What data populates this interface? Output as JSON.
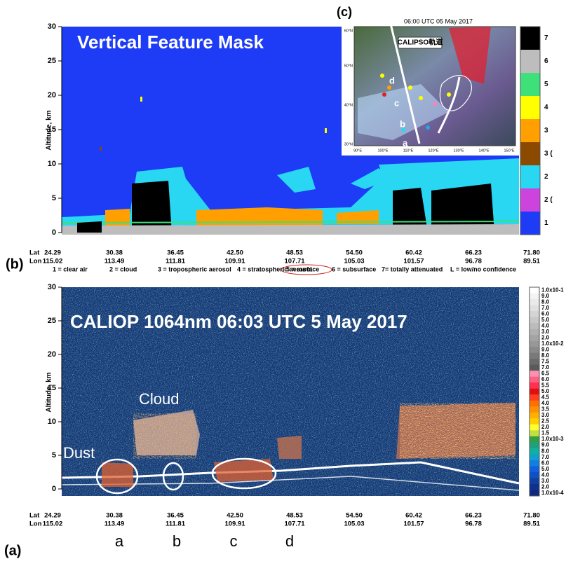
{
  "chart_data": [
    {
      "type": "curtain",
      "panel_label": "(b)",
      "title": "Vertical Feature Mask",
      "ylabel": "Altitude, km",
      "ylim": [
        0,
        30
      ],
      "yticks": [
        0,
        5,
        10,
        15,
        20,
        25,
        30
      ],
      "lat_name": "Lat",
      "lon_name": "Lon",
      "lat_labels": [
        "24.29",
        "30.38",
        "36.45",
        "42.50",
        "48.53",
        "54.50",
        "60.42",
        "66.23",
        "71.80"
      ],
      "lon_labels": [
        "115.02",
        "113.49",
        "111.81",
        "109.91",
        "107.71",
        "105.03",
        "101.57",
        "96.78",
        "89.51"
      ],
      "legend": [
        "1 = clear air",
        "2 = cloud",
        "3 = tropospheric aerosol",
        "4 = stratospheric aerosol",
        "5 = surface",
        "6 = subsurface",
        "7= totally attenuated",
        "L = low/no confidence"
      ],
      "colorbar_labels": [
        "7",
        "6",
        "5",
        "4",
        "3",
        "3 (",
        "2",
        "2 (",
        "1"
      ],
      "colorbar_colors": [
        "#000000",
        "#bdbdbd",
        "#3ee07a",
        "#ffff00",
        "#ffa000",
        "#8b4a00",
        "#29d7f2",
        "#cc44dd",
        "#1e3cf5"
      ]
    },
    {
      "type": "curtain",
      "panel_label": "(a)",
      "title": "CALIOP 1064nm 06:03 UTC 5 May 2017",
      "ylabel": "Altitude, km",
      "ylim": [
        0,
        30
      ],
      "yticks": [
        0,
        5,
        10,
        15,
        20,
        25,
        30
      ],
      "lat_name": "Lat",
      "lon_name": "Lon",
      "lat_labels": [
        "24.29",
        "30.38",
        "36.45",
        "42.50",
        "48.53",
        "54.50",
        "60.42",
        "66.23",
        "71.80"
      ],
      "lon_labels": [
        "115.02",
        "113.49",
        "111.81",
        "109.91",
        "107.71",
        "105.03",
        "101.57",
        "96.78",
        "89.51"
      ],
      "annotations": [
        "Cloud",
        "Dust"
      ],
      "site_labels": [
        "a",
        "b",
        "c",
        "d"
      ],
      "colorbar_labels": [
        "1.0x10-1",
        "9.0",
        "8.0",
        "7.0",
        "6.0",
        "5.0",
        "4.0",
        "3.0",
        "2.0",
        "1.0x10-2",
        "9.0",
        "8.0",
        "7.5",
        "7.0",
        "6.5",
        "6.0",
        "5.5",
        "5.0",
        "4.5",
        "4.0",
        "3.5",
        "3.0",
        "2.5",
        "2.0",
        "1.5",
        "1.0x10-3",
        "9.0",
        "8.0",
        "7.0",
        "6.0",
        "5.0",
        "4.0",
        "3.0",
        "2.0",
        "1.0x10-4"
      ]
    }
  ],
  "inset": {
    "panel_label": "(c)",
    "title": "06:00 UTC 05 May 2017",
    "track_label": "CALIPSO軌道",
    "lat_labels": [
      "60°N",
      "50°N",
      "40°N",
      "30°N"
    ],
    "lon_labels": [
      "90°E",
      "100°E",
      "110°E",
      "120°E",
      "130°E",
      "140°E",
      "150°E"
    ],
    "site_labels": [
      "a",
      "b",
      "c",
      "d"
    ]
  }
}
